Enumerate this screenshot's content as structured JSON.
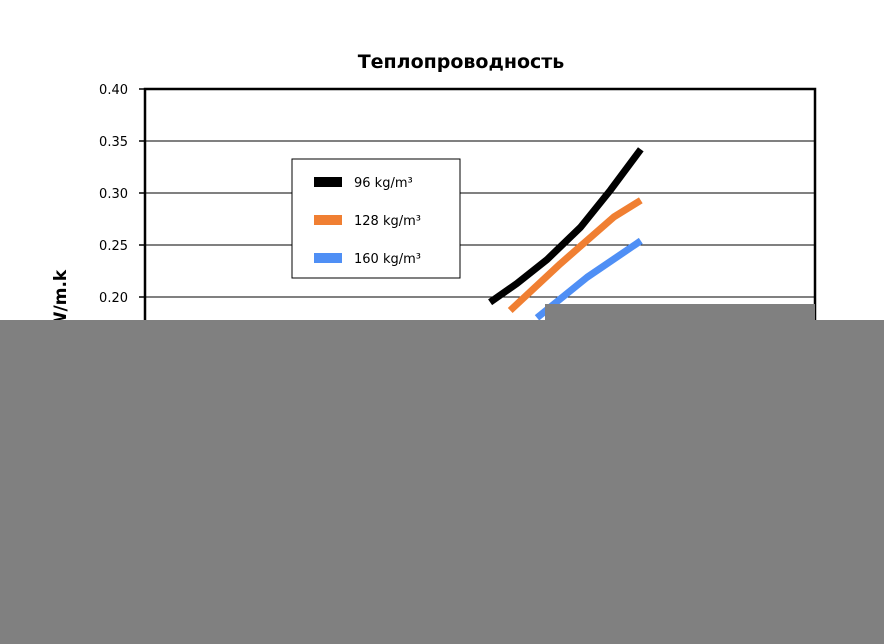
{
  "chart_data": {
    "type": "line",
    "title": "Теплопроводность",
    "ylabel": "W/m.k",
    "ylim": [
      0.15,
      0.4
    ],
    "yticks": [
      "0.40",
      "0.35",
      "0.30",
      "0.25",
      "0.20"
    ],
    "yticks_values": [
      0.4,
      0.35,
      0.3,
      0.25,
      0.2
    ],
    "grid": true,
    "legend": "upper-left-inside",
    "series": [
      {
        "name": "96 kg/m³",
        "color": "#000000",
        "points": [
          [
            0.515,
            0.195
          ],
          [
            0.555,
            0.213
          ],
          [
            0.6,
            0.236
          ],
          [
            0.65,
            0.267
          ],
          [
            0.695,
            0.303
          ],
          [
            0.74,
            0.342
          ]
        ]
      },
      {
        "name": "128 kg/m³",
        "color": "#f07f32",
        "points": [
          [
            0.545,
            0.187
          ],
          [
            0.62,
            0.232
          ],
          [
            0.7,
            0.277
          ],
          [
            0.74,
            0.293
          ]
        ]
      },
      {
        "name": "160 kg/m³",
        "color": "#4f8ff5",
        "points": [
          [
            0.585,
            0.18
          ],
          [
            0.66,
            0.219
          ],
          [
            0.74,
            0.254
          ]
        ]
      }
    ]
  }
}
